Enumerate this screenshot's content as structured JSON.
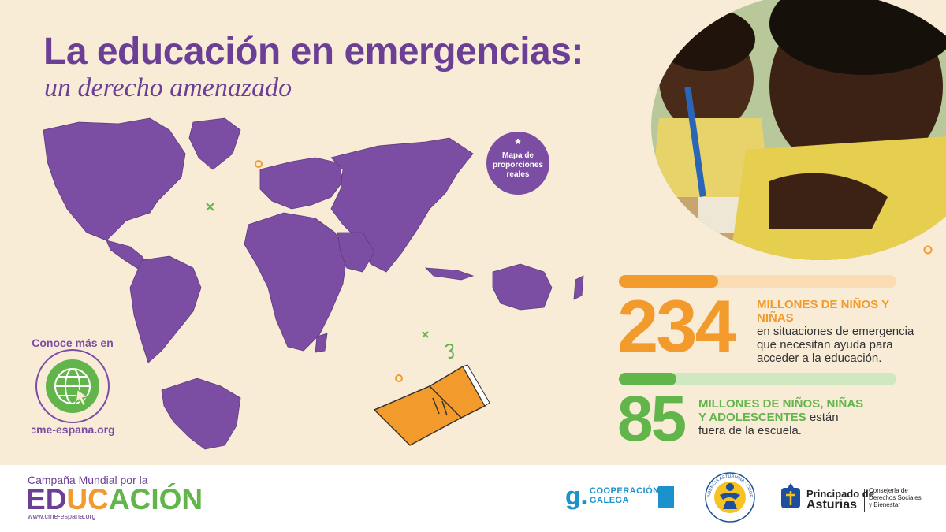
{
  "header": {
    "title": "La educación en emergencias:",
    "subtitle": "un derecho amenazado"
  },
  "map": {
    "badge_star": "*",
    "badge_text": "Mapa de proporciones reales",
    "cta_top": "Conoce más en",
    "cta_bottom": "cme-espana.org"
  },
  "stats": [
    {
      "number": "234",
      "highlight": "MILLONES DE NIÑOS Y NIÑAS",
      "text": "en situaciones de emergencia que necesitan ayuda para acceder a la educación.",
      "fill_fraction": 0.36,
      "color": "#f39a2d",
      "track_color": "#fbdcb3"
    },
    {
      "number": "85",
      "highlight": "MILLONES DE NIÑOS, NIÑAS Y ADOLESCENTES",
      "text": "están fuera de la escuela.",
      "fill_fraction": 0.21,
      "color": "#62b54a",
      "track_color": "#cfe8c0"
    }
  ],
  "footer": {
    "campaign_line1": "Campaña Mundial por la",
    "educacion_letters": [
      "E",
      "D",
      "U",
      "C",
      "A",
      "C",
      "I",
      "Ó",
      "N"
    ],
    "educacion_colors": [
      "#6b3f95",
      "#6b3f95",
      "#f39a2d",
      "#f39a2d",
      "#62b54a",
      "#62b54a",
      "#62b54a",
      "#62b54a",
      "#62b54a"
    ],
    "web": "www.cme-espana.org",
    "galega_logo": "g.",
    "galega_line1": "COOPERACIÓN",
    "galega_line2": "GALEGA",
    "agencia_ring_text": "AGENCIA ASTURIANA · COOPERACIÓN AL DESARROLLO",
    "asturias_line1": "Principado de",
    "asturias_line2": "Asturias",
    "asturias_dept1": "Consejería de",
    "asturias_dept2": "Derechos Sociales",
    "asturias_dept3": "y Bienestar"
  },
  "colors": {
    "purple": "#6b3f95",
    "map_purple": "#7b4ea3",
    "orange": "#f39a2d",
    "green": "#62b54a",
    "background": "#f8ecd6"
  }
}
